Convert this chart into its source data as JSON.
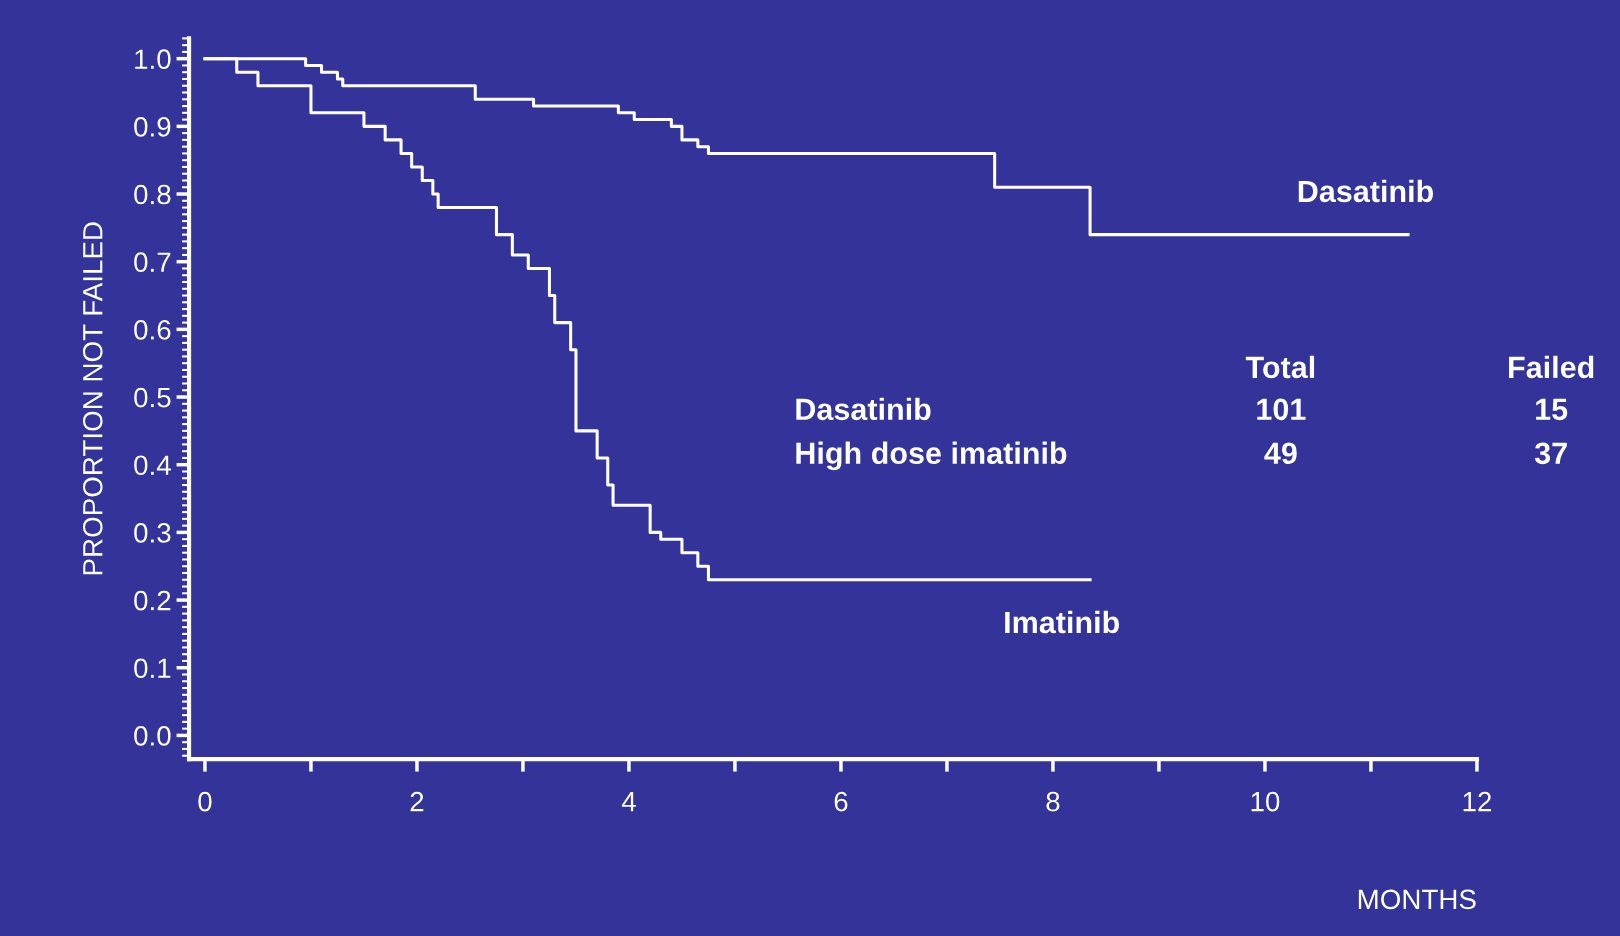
{
  "chart_data": {
    "type": "step",
    "xlabel": "MONTHS",
    "ylabel": "PROPORTION NOT FAILED",
    "xlim": [
      -0.15,
      12
    ],
    "ylim": [
      -0.035,
      1.03
    ],
    "xticks": [
      0,
      {
        "value": 1,
        "label": null
      },
      2,
      {
        "value": 3,
        "label": null
      },
      4,
      {
        "value": 5,
        "label": null
      },
      6,
      {
        "value": 7,
        "label": null
      },
      8,
      {
        "value": 9,
        "label": null
      },
      10,
      {
        "value": 11,
        "label": null
      },
      12
    ],
    "yticks": [
      {
        "value": 0,
        "label": "0.0"
      },
      0.1,
      0.2,
      0.3,
      0.4,
      0.5,
      0.6,
      0.7,
      0.8,
      0.9,
      {
        "value": 1,
        "label": "1.0"
      }
    ],
    "grid": false,
    "legend": false,
    "marker": "none",
    "line_style": "solid",
    "series": [
      {
        "name": "Dasatinib",
        "color": "#ffffff",
        "x": [
          0,
          0.95,
          1.1,
          1.25,
          1.3,
          2.55,
          3.1,
          3.9,
          4.05,
          4.4,
          4.5,
          4.65,
          4.75,
          7.45,
          8.35,
          11.35
        ],
        "values": [
          1.0,
          0.99,
          0.98,
          0.97,
          0.96,
          0.94,
          0.93,
          0.92,
          0.91,
          0.9,
          0.88,
          0.87,
          0.86,
          0.81,
          0.74,
          0.74
        ]
      },
      {
        "name": "Imatinib",
        "color": "#ffffff",
        "x": [
          0,
          0.3,
          0.5,
          1.0,
          1.5,
          1.7,
          1.85,
          1.95,
          2.05,
          2.15,
          2.2,
          2.75,
          2.9,
          3.05,
          3.25,
          3.3,
          3.45,
          3.5,
          3.7,
          3.8,
          3.85,
          4.2,
          4.3,
          4.5,
          4.65,
          4.75,
          8.35
        ],
        "values": [
          1.0,
          0.98,
          0.96,
          0.92,
          0.9,
          0.88,
          0.86,
          0.84,
          0.82,
          0.8,
          0.78,
          0.74,
          0.71,
          0.69,
          0.65,
          0.61,
          0.57,
          0.45,
          0.41,
          0.37,
          0.34,
          0.3,
          0.29,
          0.27,
          0.25,
          0.23,
          0.23
        ]
      }
    ],
    "annotations": [
      "Total",
      "Failed",
      "Dasatinib",
      "101",
      "15",
      "High dose imatinib",
      "49",
      "37"
    ]
  }
}
